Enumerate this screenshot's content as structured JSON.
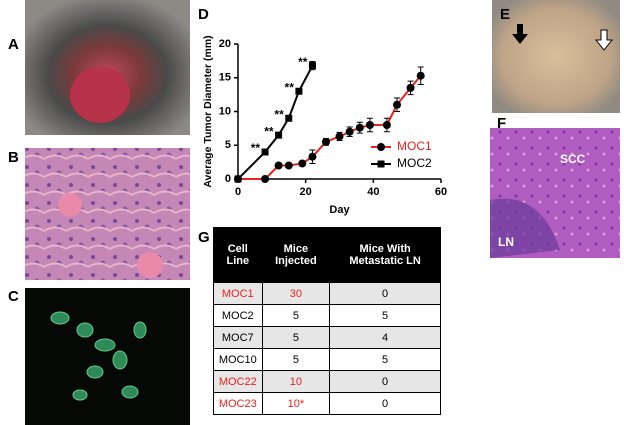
{
  "panel_labels": [
    "A",
    "B",
    "C",
    "D",
    "E",
    "F",
    "G"
  ],
  "panel_f_labels": [
    "SCC",
    "LN"
  ],
  "chart_data": {
    "type": "line",
    "x_label": "Day",
    "y_label": "Average Tumor Diameter (mm)",
    "xlim": [
      0,
      60
    ],
    "xticks": [
      0,
      20,
      40,
      60
    ],
    "ylim": [
      0,
      20
    ],
    "yticks": [
      0,
      5,
      10,
      15,
      20
    ],
    "legend": "right",
    "series": [
      {
        "name": "MOC1",
        "color": "#e8211d",
        "marker": "circle",
        "marker_color": "#000000",
        "x": [
          0,
          8,
          12,
          15,
          19,
          22,
          26,
          30,
          33,
          36,
          39,
          44,
          47,
          51,
          54
        ],
        "values": [
          0,
          0,
          2,
          2,
          2.3,
          3.3,
          5.5,
          6.3,
          7,
          7.6,
          8,
          8,
          11,
          13.5,
          15.3
        ],
        "errors": [
          0,
          0,
          0.3,
          0.3,
          0.3,
          1,
          0.5,
          0.6,
          0.7,
          0.8,
          1,
          1,
          1,
          1,
          1.3
        ]
      },
      {
        "name": "MOC2",
        "color": "#000000",
        "marker": "square",
        "marker_color": "#000000",
        "x": [
          0,
          8,
          12,
          15,
          18,
          22
        ],
        "values": [
          0,
          4,
          6.5,
          9,
          13,
          16.8
        ],
        "errors": [
          0,
          0.4,
          0.3,
          0.4,
          0.4,
          0.6
        ],
        "significance": [
          null,
          "**",
          "**",
          "**",
          "**",
          "**"
        ]
      }
    ]
  },
  "table": {
    "columns": [
      "Cell Line",
      "Mice Injected",
      "Mice With Metastatic LN"
    ],
    "rows": [
      [
        "MOC1",
        "30",
        "0"
      ],
      [
        "MOC2",
        "5",
        "5"
      ],
      [
        "MOC7",
        "5",
        "4"
      ],
      [
        "MOC10",
        "5",
        "5"
      ],
      [
        "MOC22",
        "10",
        "0"
      ],
      [
        "MOC23",
        "10*",
        "0"
      ]
    ],
    "highlight_color": "#e8211d",
    "highlighted_rows": [
      0,
      4,
      5
    ],
    "stripe_color": "#e6e6e6"
  }
}
